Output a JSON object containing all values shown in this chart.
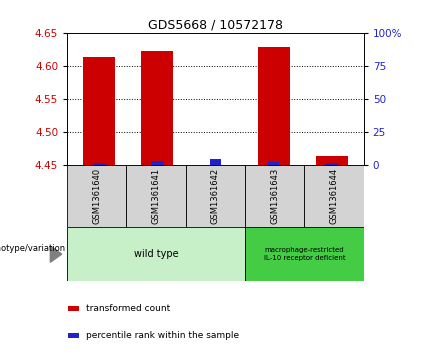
{
  "title": "GDS5668 / 10572178",
  "samples": [
    "GSM1361640",
    "GSM1361641",
    "GSM1361642",
    "GSM1361643",
    "GSM1361644"
  ],
  "transformed_counts": [
    4.614,
    4.622,
    4.451,
    4.628,
    4.464
  ],
  "percentile_ranks_pct": [
    2.0,
    3.0,
    4.5,
    2.5,
    2.0
  ],
  "bar_bottom": 4.45,
  "ylim_left": [
    4.45,
    4.65
  ],
  "ylim_right": [
    0,
    100
  ],
  "yticks_left": [
    4.45,
    4.5,
    4.55,
    4.6,
    4.65
  ],
  "yticks_right": [
    0,
    25,
    50,
    75,
    100
  ],
  "red_color": "#cc0000",
  "blue_color": "#2222cc",
  "sample_bg": "#d3d3d3",
  "wild_type_bg": "#c8f0c8",
  "macrophage_bg": "#44cc44",
  "wild_type_label": "wild type",
  "macrophage_label": "macrophage-restricted\nIL-10 receptor deficient",
  "genotype_label": "genotype/variation",
  "legend_red": "transformed count",
  "legend_blue": "percentile rank within the sample",
  "red_bar_width": 0.55,
  "blue_bar_width": 0.2,
  "title_fontsize": 9,
  "tick_fontsize": 7.5,
  "sample_fontsize": 6,
  "geno_fontsize": 7,
  "legend_fontsize": 6.5
}
